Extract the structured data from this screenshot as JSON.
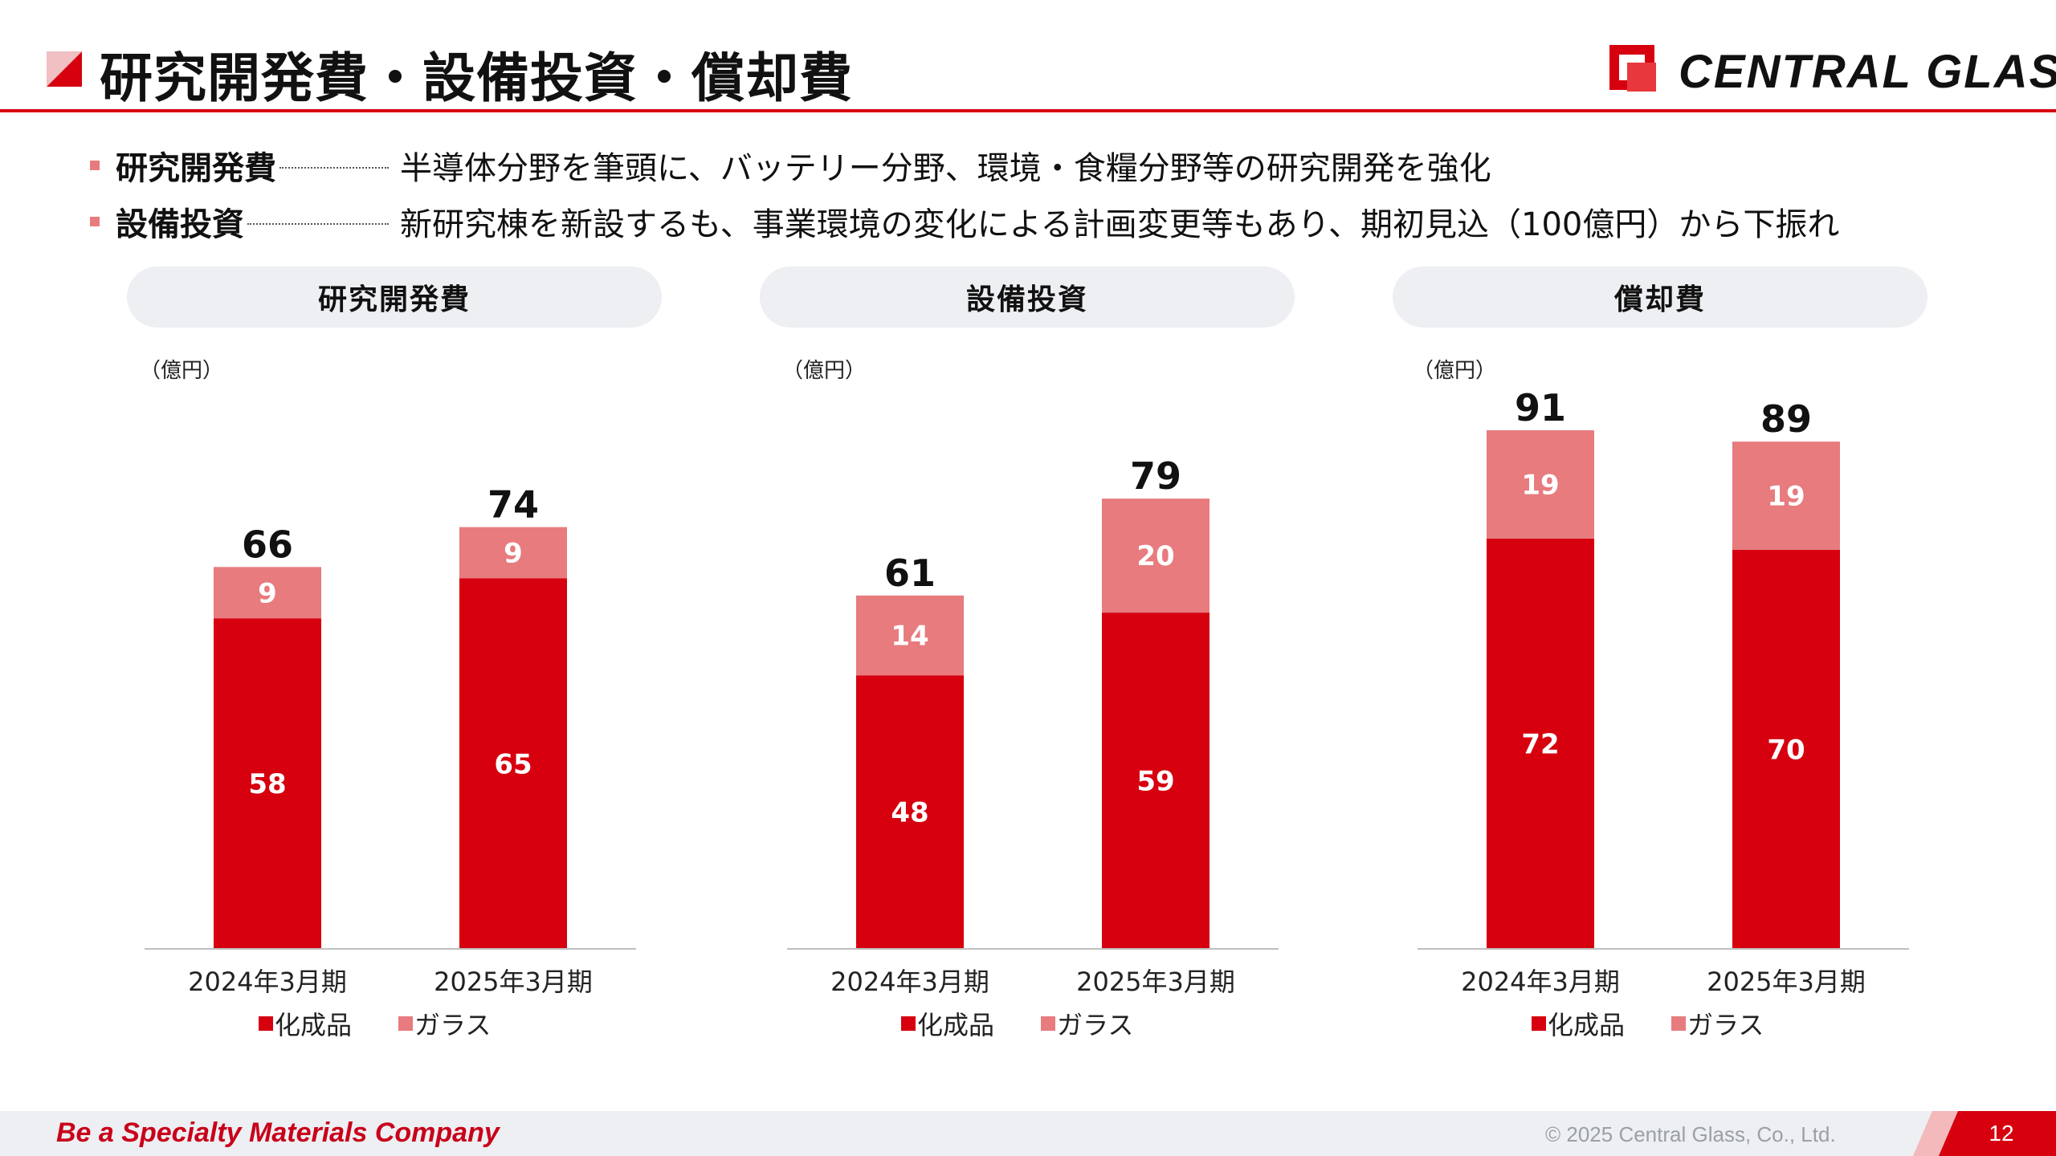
{
  "header": {
    "title": "研究開発費・設備投資・償却費",
    "logo_text": "CENTRAL  GLASS"
  },
  "bullets": [
    {
      "label": "研究開発費",
      "text": "半導体分野を筆頭に、バッテリー分野、環境・食糧分野等の研究開発を強化"
    },
    {
      "label": "設備投資",
      "text": "新研究棟を新設するも、事業環境の変化による計画変更等もあり、期初見込（100億円）から下振れ"
    }
  ],
  "colors": {
    "accent": "#d6000f",
    "series_chemicals": "#d6000f",
    "series_glass": "#e77b7e",
    "panel_bg": "#edeff2"
  },
  "chart_data": [
    {
      "type": "bar",
      "stacked": true,
      "title": "研究開発費",
      "unit": "（億円）",
      "categories": [
        "2024年3月期",
        "2025年3月期"
      ],
      "series": [
        {
          "name": "化成品",
          "values": [
            58,
            65
          ]
        },
        {
          "name": "ガラス",
          "values": [
            9,
            9
          ]
        }
      ],
      "totals": [
        66,
        74
      ],
      "legend_position": "bottom"
    },
    {
      "type": "bar",
      "stacked": true,
      "title": "設備投資",
      "unit": "（億円）",
      "categories": [
        "2024年3月期",
        "2025年3月期"
      ],
      "series": [
        {
          "name": "化成品",
          "values": [
            48,
            59
          ]
        },
        {
          "name": "ガラス",
          "values": [
            14,
            20
          ]
        }
      ],
      "totals": [
        61,
        79
      ],
      "legend_position": "bottom"
    },
    {
      "type": "bar",
      "stacked": true,
      "title": "償却費",
      "unit": "（億円）",
      "categories": [
        "2024年3月期",
        "2025年3月期"
      ],
      "series": [
        {
          "name": "化成品",
          "values": [
            72,
            70
          ]
        },
        {
          "name": "ガラス",
          "values": [
            19,
            19
          ]
        }
      ],
      "totals": [
        91,
        89
      ],
      "legend_position": "bottom"
    }
  ],
  "footer": {
    "tagline": "Be a Specialty Materials Company",
    "copyright": "© 2025 Central Glass, Co., Ltd.",
    "page_number": "12"
  }
}
